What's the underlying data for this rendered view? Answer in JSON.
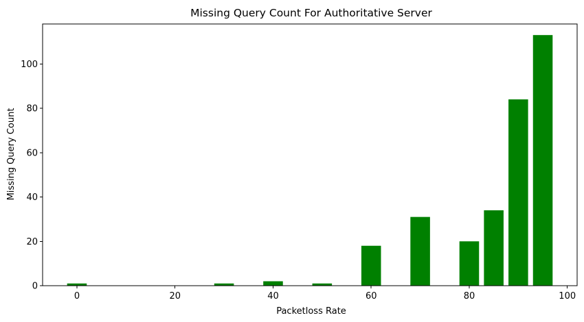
{
  "chart_data": {
    "type": "bar",
    "title": "Missing Query Count For Authoritative Server",
    "xlabel": "Packetloss Rate",
    "ylabel": "Missing Query Count",
    "x": [
      0,
      30,
      40,
      50,
      60,
      70,
      80,
      85,
      90,
      95
    ],
    "values": [
      1,
      1,
      2,
      1,
      18,
      31,
      20,
      34,
      84,
      113
    ],
    "bar_width": 4,
    "bar_color": "#008000",
    "xlim": [
      -7,
      102
    ],
    "ylim": [
      0,
      118
    ],
    "xticks": [
      0,
      20,
      40,
      60,
      80,
      100
    ],
    "yticks": [
      0,
      20,
      40,
      60,
      80,
      100
    ],
    "grid": false,
    "legend": "none"
  }
}
